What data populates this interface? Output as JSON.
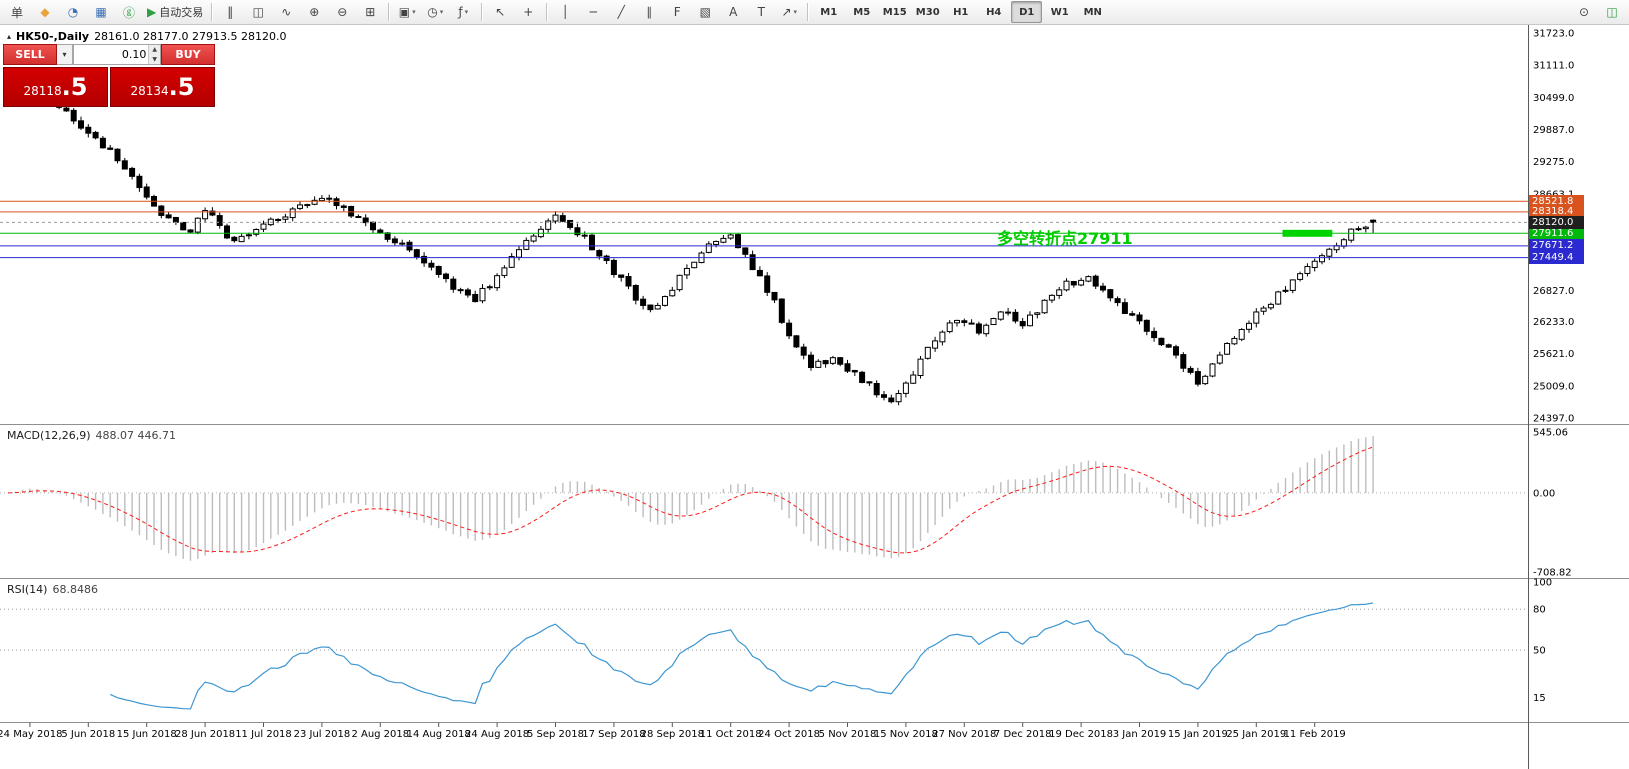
{
  "toolbar": {
    "groups": [
      [
        {
          "name": "new-order-button",
          "glyph": "单"
        },
        {
          "name": "charts-grid-icon",
          "glyph": "◆",
          "color": "#e8a33d"
        },
        {
          "name": "market-watch-icon",
          "glyph": "◔",
          "color": "#3b6fb5"
        },
        {
          "name": "navigator-icon",
          "glyph": "▦",
          "color": "#3b6fb5"
        },
        {
          "name": "terminal-icon",
          "glyph": "ⓖ",
          "color": "#2f9e44"
        },
        {
          "name": "autotrading-button",
          "glyph": "▶",
          "color": "#2f9e44",
          "label": "自动交易"
        }
      ],
      [
        {
          "name": "bar-chart-type-button",
          "glyph": "‖"
        },
        {
          "name": "candlestick-chart-type-button",
          "glyph": "◫"
        },
        {
          "name": "line-chart-type-button",
          "glyph": "∿"
        },
        {
          "name": "zoom-in-button",
          "glyph": "⊕"
        },
        {
          "name": "zoom-out-button",
          "glyph": "⊖"
        },
        {
          "name": "tile-windows-button",
          "glyph": "⊞"
        }
      ],
      [
        {
          "name": "new-chart-button",
          "glyph": "▣",
          "caret": true
        },
        {
          "name": "profiles-button",
          "glyph": "◷",
          "caret": true
        },
        {
          "name": "indicators-button",
          "glyph": "ƒ",
          "caret": true
        }
      ],
      [
        {
          "name": "cursor-tool-button",
          "glyph": "↖"
        },
        {
          "name": "crosshair-tool-button",
          "glyph": "+"
        }
      ],
      [
        {
          "name": "vertical-line-tool-button",
          "glyph": "│"
        },
        {
          "name": "horizontal-line-tool-button",
          "glyph": "─"
        },
        {
          "name": "trendline-tool-button",
          "glyph": "╱"
        },
        {
          "name": "channel-tool-button",
          "glyph": "∥"
        },
        {
          "name": "fibonacci-tool-button",
          "glyph": "F"
        },
        {
          "name": "shapes-tool-button",
          "glyph": "▧"
        },
        {
          "name": "text-tool-button",
          "glyph": "A"
        },
        {
          "name": "label-tool-button",
          "glyph": "T"
        },
        {
          "name": "arrows-tool-button",
          "glyph": "↗",
          "caret": true
        }
      ]
    ],
    "timeframes": [
      "M1",
      "M5",
      "M15",
      "M30",
      "H1",
      "H4",
      "D1",
      "W1",
      "MN"
    ],
    "active_timeframe": "D1",
    "right_items": [
      {
        "name": "search-symbols-button",
        "glyph": "⊙"
      },
      {
        "name": "chart-window-button",
        "glyph": "◫",
        "color": "#2f9e44"
      }
    ]
  },
  "chart": {
    "symbol_period": "HK50-,Daily",
    "ohlc_text": "28161.0 28177.0 27913.5 28120.0"
  },
  "trade_panel": {
    "sell_label": "SELL",
    "buy_label": "BUY",
    "volume": "0.10",
    "sell_price_main": "28118",
    "sell_price_big": ".5",
    "buy_price_main": "28134",
    "buy_price_big": ".5"
  },
  "chart_data": {
    "type": "candlestick",
    "symbol": "HK50-",
    "period": "Daily",
    "ohlc_display": {
      "open": 28161.0,
      "high": 28177.0,
      "low": 27913.5,
      "close": 28120.0
    },
    "bars": 188,
    "seed": 11,
    "last_bar": {
      "o": 28161.0,
      "h": 28177.0,
      "l": 27913.5,
      "c": 28120.0
    },
    "price_anchors": [
      [
        0,
        30500
      ],
      [
        2,
        30780
      ],
      [
        5,
        30450
      ],
      [
        8,
        30180
      ],
      [
        11,
        29850
      ],
      [
        14,
        29450
      ],
      [
        17,
        29000
      ],
      [
        19,
        28550
      ],
      [
        22,
        28150
      ],
      [
        25,
        27950
      ],
      [
        27,
        28400
      ],
      [
        30,
        27800
      ],
      [
        33,
        27850
      ],
      [
        36,
        28150
      ],
      [
        40,
        28400
      ],
      [
        44,
        28600
      ],
      [
        48,
        28200
      ],
      [
        52,
        27850
      ],
      [
        55,
        27600
      ],
      [
        58,
        27300
      ],
      [
        61,
        26900
      ],
      [
        64,
        26650
      ],
      [
        68,
        27250
      ],
      [
        72,
        27900
      ],
      [
        75,
        28250
      ],
      [
        78,
        27950
      ],
      [
        82,
        27350
      ],
      [
        85,
        26850
      ],
      [
        88,
        26400
      ],
      [
        92,
        27050
      ],
      [
        96,
        27650
      ],
      [
        99,
        27900
      ],
      [
        102,
        27250
      ],
      [
        105,
        26650
      ],
      [
        107,
        25900
      ],
      [
        110,
        25350
      ],
      [
        113,
        25550
      ],
      [
        116,
        25250
      ],
      [
        119,
        24900
      ],
      [
        121,
        24650
      ],
      [
        124,
        25250
      ],
      [
        127,
        25900
      ],
      [
        130,
        26300
      ],
      [
        133,
        26050
      ],
      [
        136,
        26450
      ],
      [
        139,
        26150
      ],
      [
        142,
        26600
      ],
      [
        145,
        26950
      ],
      [
        148,
        27050
      ],
      [
        151,
        26650
      ],
      [
        154,
        26300
      ],
      [
        157,
        25950
      ],
      [
        160,
        25550
      ],
      [
        163,
        25050
      ],
      [
        166,
        25650
      ],
      [
        169,
        26100
      ],
      [
        172,
        26500
      ],
      [
        175,
        26850
      ],
      [
        178,
        27250
      ],
      [
        181,
        27550
      ],
      [
        184,
        27950
      ],
      [
        187,
        28120
      ]
    ],
    "y_axis": [
      {
        "v": 31723.0,
        "t": "31723.0"
      },
      {
        "v": 31111.0,
        "t": "31111.0"
      },
      {
        "v": 30499.0,
        "t": "30499.0"
      },
      {
        "v": 29887.0,
        "t": "29887.0"
      },
      {
        "v": 29275.0,
        "t": "29275.0"
      },
      {
        "v": 28663.1,
        "t": "28663.1"
      },
      {
        "v": 26827.0,
        "t": "26827.0"
      },
      {
        "v": 26233.0,
        "t": "26233.0"
      },
      {
        "v": 25621.0,
        "t": "25621.0"
      },
      {
        "v": 25009.0,
        "t": "25009.0"
      },
      {
        "v": 24397.0,
        "t": "24397.0"
      }
    ],
    "hlines": [
      {
        "price": 28521.8,
        "label": "28521.8",
        "color": "#d9531e"
      },
      {
        "price": 28318.4,
        "label": "28318.4",
        "color": "#d9531e"
      },
      {
        "price": 27911.6,
        "label": "27911.6",
        "color": "#00b80c"
      },
      {
        "price": 27671.2,
        "label": "27671.2",
        "color": "#2a2ad0"
      },
      {
        "price": 27449.4,
        "label": "27449.4",
        "color": "#2a2ad0"
      }
    ],
    "current_price": {
      "price": 28120.0,
      "label": "28120.0",
      "color": "#1f1f1f"
    },
    "annotation": {
      "text": "多空转折点27911",
      "color": "#00cc00"
    },
    "green_bar": {
      "from_bar": 175,
      "to_bar": 181,
      "price": 27911.6,
      "color": "#00d400"
    },
    "x_labels": [
      "24 May 2018",
      "5 Jun 2018",
      "15 Jun 2018",
      "28 Jun 2018",
      "11 Jul 2018",
      "23 Jul 2018",
      "2 Aug 2018",
      "14 Aug 2018",
      "24 Aug 2018",
      "5 Sep 2018",
      "17 Sep 2018",
      "28 Sep 2018",
      "11 Oct 2018",
      "24 Oct 2018",
      "5 Nov 2018",
      "15 Nov 2018",
      "27 Nov 2018",
      "7 Dec 2018",
      "19 Dec 2018",
      "3 Jan 2019",
      "15 Jan 2019",
      "25 Jan 2019",
      "11 Feb 2019"
    ],
    "x_label_first_bar": 3,
    "x_label_step": 8,
    "macd": {
      "label": "MACD(12,26,9)",
      "values": "488.07 446.71",
      "axis": [
        {
          "v": 545.06,
          "t": "545.06"
        },
        {
          "v": 0,
          "t": "0.00"
        },
        {
          "v": -708.82,
          "t": "-708.82"
        }
      ]
    },
    "rsi": {
      "label": "RSI(14)",
      "value": "68.8486",
      "axis": [
        {
          "v": 100,
          "t": "100"
        },
        {
          "v": 80,
          "t": "80"
        },
        {
          "v": 50,
          "t": "50"
        },
        {
          "v": 15,
          "t": "15"
        }
      ],
      "levels": [
        80,
        50
      ]
    }
  }
}
